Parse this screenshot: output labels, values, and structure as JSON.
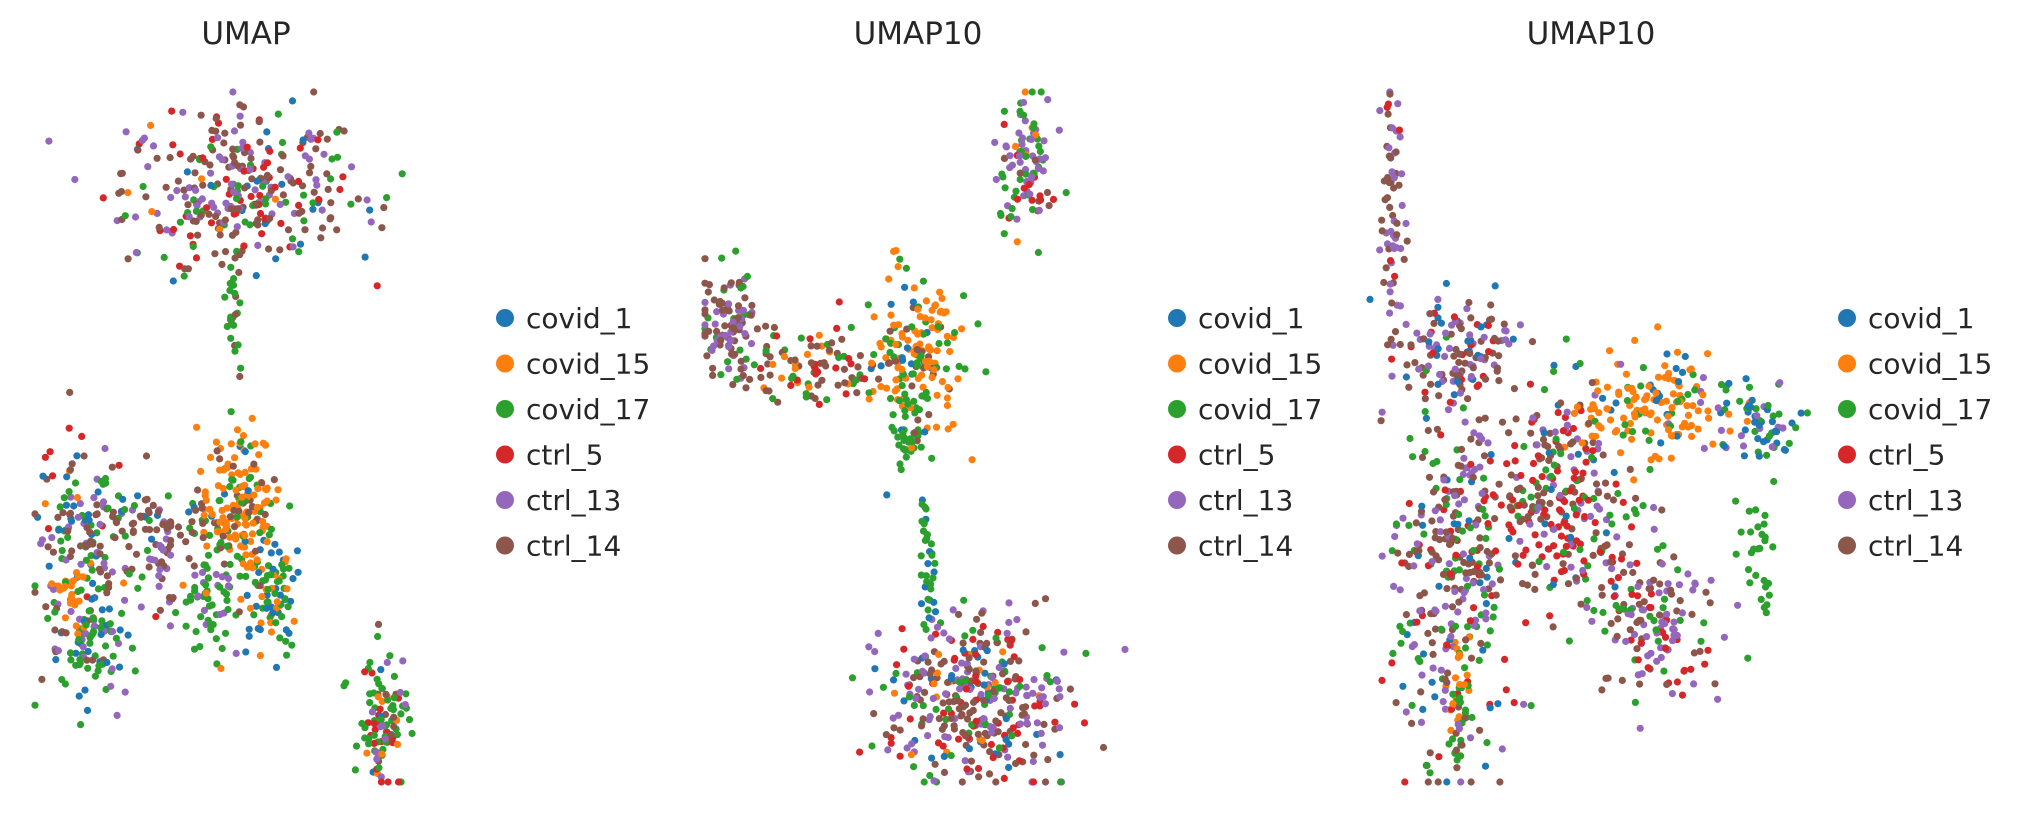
{
  "colors": {
    "covid_1": "#1f77b4",
    "covid_15": "#ff7f0e",
    "covid_17": "#2ca02c",
    "ctrl_5": "#d62728",
    "ctrl_13": "#9467bd",
    "ctrl_14": "#8c564b"
  },
  "chart_data": [
    {
      "type": "scatter",
      "title": "UMAP",
      "xlabel": "",
      "ylabel": "",
      "axes_visible": false,
      "grid": false,
      "legend_placement": "right",
      "legend": [
        "covid_1",
        "covid_15",
        "covid_17",
        "ctrl_5",
        "ctrl_13",
        "ctrl_14"
      ],
      "clusters": [
        {
          "x": 0.5,
          "y": 0.86,
          "sx": 0.14,
          "sy": 0.055,
          "n": 320,
          "mix": {
            "covid_1": 0.06,
            "covid_15": 0.03,
            "covid_17": 0.14,
            "ctrl_5": 0.18,
            "ctrl_13": 0.24,
            "ctrl_14": 0.35
          }
        },
        {
          "x": 0.47,
          "y": 0.68,
          "sx": 0.012,
          "sy": 0.06,
          "n": 28,
          "mix": {
            "covid_17": 0.85,
            "ctrl_14": 0.15
          }
        },
        {
          "x": 0.12,
          "y": 0.34,
          "sx": 0.06,
          "sy": 0.09,
          "n": 190,
          "mix": {
            "covid_1": 0.15,
            "covid_15": 0.05,
            "covid_17": 0.3,
            "ctrl_5": 0.05,
            "ctrl_13": 0.18,
            "ctrl_14": 0.27
          }
        },
        {
          "x": 0.14,
          "y": 0.2,
          "sx": 0.04,
          "sy": 0.035,
          "n": 70,
          "mix": {
            "covid_17": 0.7,
            "covid_1": 0.2,
            "ctrl_13": 0.1
          }
        },
        {
          "x": 0.3,
          "y": 0.3,
          "sx": 0.015,
          "sy": 0.04,
          "n": 30,
          "mix": {
            "ctrl_13": 0.5,
            "ctrl_14": 0.5
          }
        },
        {
          "x": 0.3,
          "y": 0.38,
          "sx": 0.07,
          "sy": 0.02,
          "n": 50,
          "mix": {
            "ctrl_14": 0.6,
            "covid_1": 0.2,
            "covid_17": 0.2
          }
        },
        {
          "x": 0.48,
          "y": 0.39,
          "sx": 0.045,
          "sy": 0.06,
          "n": 190,
          "mix": {
            "covid_15": 0.55,
            "covid_17": 0.2,
            "covid_1": 0.1,
            "ctrl_14": 0.15
          }
        },
        {
          "x": 0.57,
          "y": 0.27,
          "sx": 0.03,
          "sy": 0.04,
          "n": 80,
          "mix": {
            "covid_1": 0.4,
            "covid_17": 0.45,
            "covid_15": 0.15
          }
        },
        {
          "x": 0.42,
          "y": 0.27,
          "sx": 0.035,
          "sy": 0.04,
          "n": 60,
          "mix": {
            "covid_17": 0.8,
            "ctrl_13": 0.2
          }
        },
        {
          "x": 0.08,
          "y": 0.28,
          "sx": 0.015,
          "sy": 0.015,
          "n": 20,
          "mix": {
            "covid_15": 1.0
          }
        },
        {
          "x": 0.83,
          "y": 0.08,
          "sx": 0.03,
          "sy": 0.05,
          "n": 110,
          "mix": {
            "covid_17": 0.4,
            "ctrl_5": 0.2,
            "ctrl_13": 0.15,
            "covid_15": 0.1,
            "covid_1": 0.05,
            "ctrl_14": 0.1
          }
        }
      ]
    },
    {
      "type": "scatter",
      "title": "UMAP10",
      "xlabel": "",
      "ylabel": "",
      "axes_visible": false,
      "grid": false,
      "legend_placement": "right",
      "legend": [
        "covid_1",
        "covid_15",
        "covid_17",
        "ctrl_5",
        "ctrl_13",
        "ctrl_14"
      ],
      "clusters": [
        {
          "x": 0.77,
          "y": 0.9,
          "sx": 0.035,
          "sy": 0.05,
          "n": 100,
          "mix": {
            "covid_17": 0.4,
            "ctrl_13": 0.3,
            "ctrl_5": 0.15,
            "covid_15": 0.1,
            "ctrl_14": 0.05
          }
        },
        {
          "x": 0.06,
          "y": 0.66,
          "sx": 0.04,
          "sy": 0.04,
          "n": 110,
          "mix": {
            "ctrl_14": 0.6,
            "ctrl_13": 0.25,
            "covid_17": 0.15
          }
        },
        {
          "x": 0.25,
          "y": 0.6,
          "sx": 0.08,
          "sy": 0.025,
          "n": 90,
          "mix": {
            "ctrl_14": 0.5,
            "covid_17": 0.2,
            "ctrl_5": 0.15,
            "covid_15": 0.15
          }
        },
        {
          "x": 0.5,
          "y": 0.62,
          "sx": 0.06,
          "sy": 0.06,
          "n": 170,
          "mix": {
            "covid_15": 0.55,
            "covid_17": 0.25,
            "covid_1": 0.1,
            "ctrl_14": 0.1
          }
        },
        {
          "x": 0.48,
          "y": 0.52,
          "sx": 0.025,
          "sy": 0.03,
          "n": 40,
          "mix": {
            "covid_17": 0.9,
            "ctrl_14": 0.1
          }
        },
        {
          "x": 0.53,
          "y": 0.31,
          "sx": 0.01,
          "sy": 0.06,
          "n": 35,
          "mix": {
            "covid_17": 0.85,
            "covid_1": 0.15
          }
        },
        {
          "x": 0.65,
          "y": 0.12,
          "sx": 0.11,
          "sy": 0.06,
          "n": 380,
          "mix": {
            "ctrl_14": 0.3,
            "ctrl_13": 0.25,
            "ctrl_5": 0.15,
            "covid_17": 0.15,
            "covid_15": 0.07,
            "covid_1": 0.08
          }
        }
      ]
    },
    {
      "type": "scatter",
      "title": "UMAP10",
      "xlabel": "",
      "ylabel": "",
      "axes_visible": false,
      "grid": false,
      "legend_placement": "right",
      "legend": [
        "covid_1",
        "covid_15",
        "covid_17",
        "ctrl_5",
        "ctrl_13",
        "ctrl_14"
      ],
      "clusters": [
        {
          "x": 0.05,
          "y": 0.82,
          "sx": 0.012,
          "sy": 0.1,
          "n": 70,
          "mix": {
            "ctrl_14": 0.5,
            "ctrl_13": 0.45,
            "ctrl_5": 0.05
          }
        },
        {
          "x": 0.2,
          "y": 0.62,
          "sx": 0.07,
          "sy": 0.04,
          "n": 130,
          "mix": {
            "ctrl_14": 0.45,
            "ctrl_13": 0.25,
            "covid_1": 0.15,
            "ctrl_5": 0.15
          }
        },
        {
          "x": 0.63,
          "y": 0.55,
          "sx": 0.09,
          "sy": 0.04,
          "n": 160,
          "mix": {
            "covid_15": 0.75,
            "covid_1": 0.1,
            "covid_17": 0.1,
            "ctrl_13": 0.05
          }
        },
        {
          "x": 0.88,
          "y": 0.52,
          "sx": 0.04,
          "sy": 0.03,
          "n": 60,
          "mix": {
            "covid_1": 0.5,
            "covid_17": 0.3,
            "ctrl_13": 0.2
          }
        },
        {
          "x": 0.43,
          "y": 0.41,
          "sx": 0.09,
          "sy": 0.07,
          "n": 280,
          "mix": {
            "ctrl_14": 0.35,
            "ctrl_5": 0.3,
            "covid_17": 0.15,
            "ctrl_13": 0.15,
            "covid_1": 0.05
          }
        },
        {
          "x": 0.18,
          "y": 0.3,
          "sx": 0.06,
          "sy": 0.14,
          "n": 330,
          "mix": {
            "ctrl_14": 0.3,
            "ctrl_13": 0.25,
            "covid_17": 0.25,
            "ctrl_5": 0.12,
            "covid_1": 0.08
          }
        },
        {
          "x": 0.65,
          "y": 0.24,
          "sx": 0.07,
          "sy": 0.06,
          "n": 150,
          "mix": {
            "ctrl_13": 0.35,
            "ctrl_14": 0.3,
            "covid_17": 0.2,
            "ctrl_5": 0.15
          }
        },
        {
          "x": 0.87,
          "y": 0.33,
          "sx": 0.02,
          "sy": 0.05,
          "n": 30,
          "mix": {
            "covid_17": 1.0
          }
        },
        {
          "x": 0.2,
          "y": 0.12,
          "sx": 0.012,
          "sy": 0.06,
          "n": 40,
          "mix": {
            "covid_17": 0.4,
            "covid_15": 0.6
          }
        }
      ]
    }
  ]
}
